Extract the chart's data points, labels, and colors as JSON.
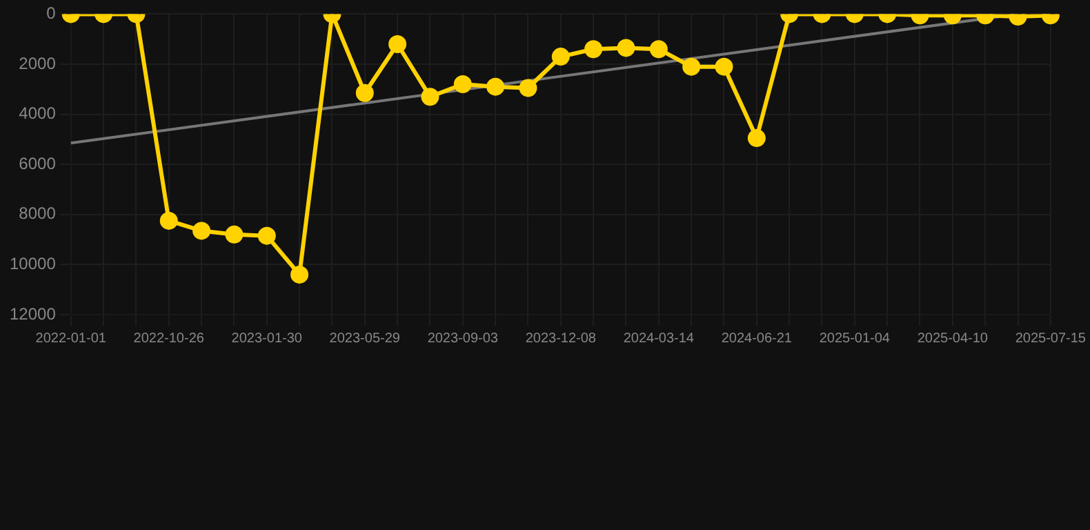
{
  "chart_data": {
    "type": "line",
    "categories": [
      "2022-01-01",
      null,
      null,
      "2022-10-26",
      null,
      null,
      "2023-01-30",
      null,
      null,
      "2023-05-29",
      null,
      null,
      "2023-09-03",
      null,
      null,
      "2023-12-08",
      null,
      null,
      "2024-03-14",
      null,
      null,
      "2024-06-21",
      null,
      null,
      "2025-01-04",
      null,
      null,
      "2025-04-10",
      null,
      null,
      "2025-07-15"
    ],
    "series": [
      {
        "color": "#ffd200",
        "marker": "circle",
        "values": [
          0,
          0,
          0,
          8250,
          8650,
          8800,
          8850,
          10400,
          0,
          3150,
          1200,
          3300,
          2800,
          2900,
          2950,
          1700,
          1400,
          1350,
          1400,
          2100,
          2100,
          4950,
          0,
          0,
          0,
          0,
          50,
          50,
          50,
          100,
          50
        ]
      },
      {
        "color": "#777777",
        "marker": "none",
        "values": [
          5150,
          null,
          null,
          null,
          null,
          null,
          null,
          null,
          null,
          null,
          null,
          null,
          null,
          null,
          null,
          null,
          null,
          null,
          null,
          null,
          null,
          null,
          null,
          null,
          null,
          null,
          null,
          null,
          null,
          0,
          null
        ]
      }
    ],
    "ylim": [
      12000,
      0
    ],
    "yticks": [
      0,
      2000,
      4000,
      6000,
      8000,
      10000,
      12000
    ],
    "grid": true,
    "legend": false
  }
}
